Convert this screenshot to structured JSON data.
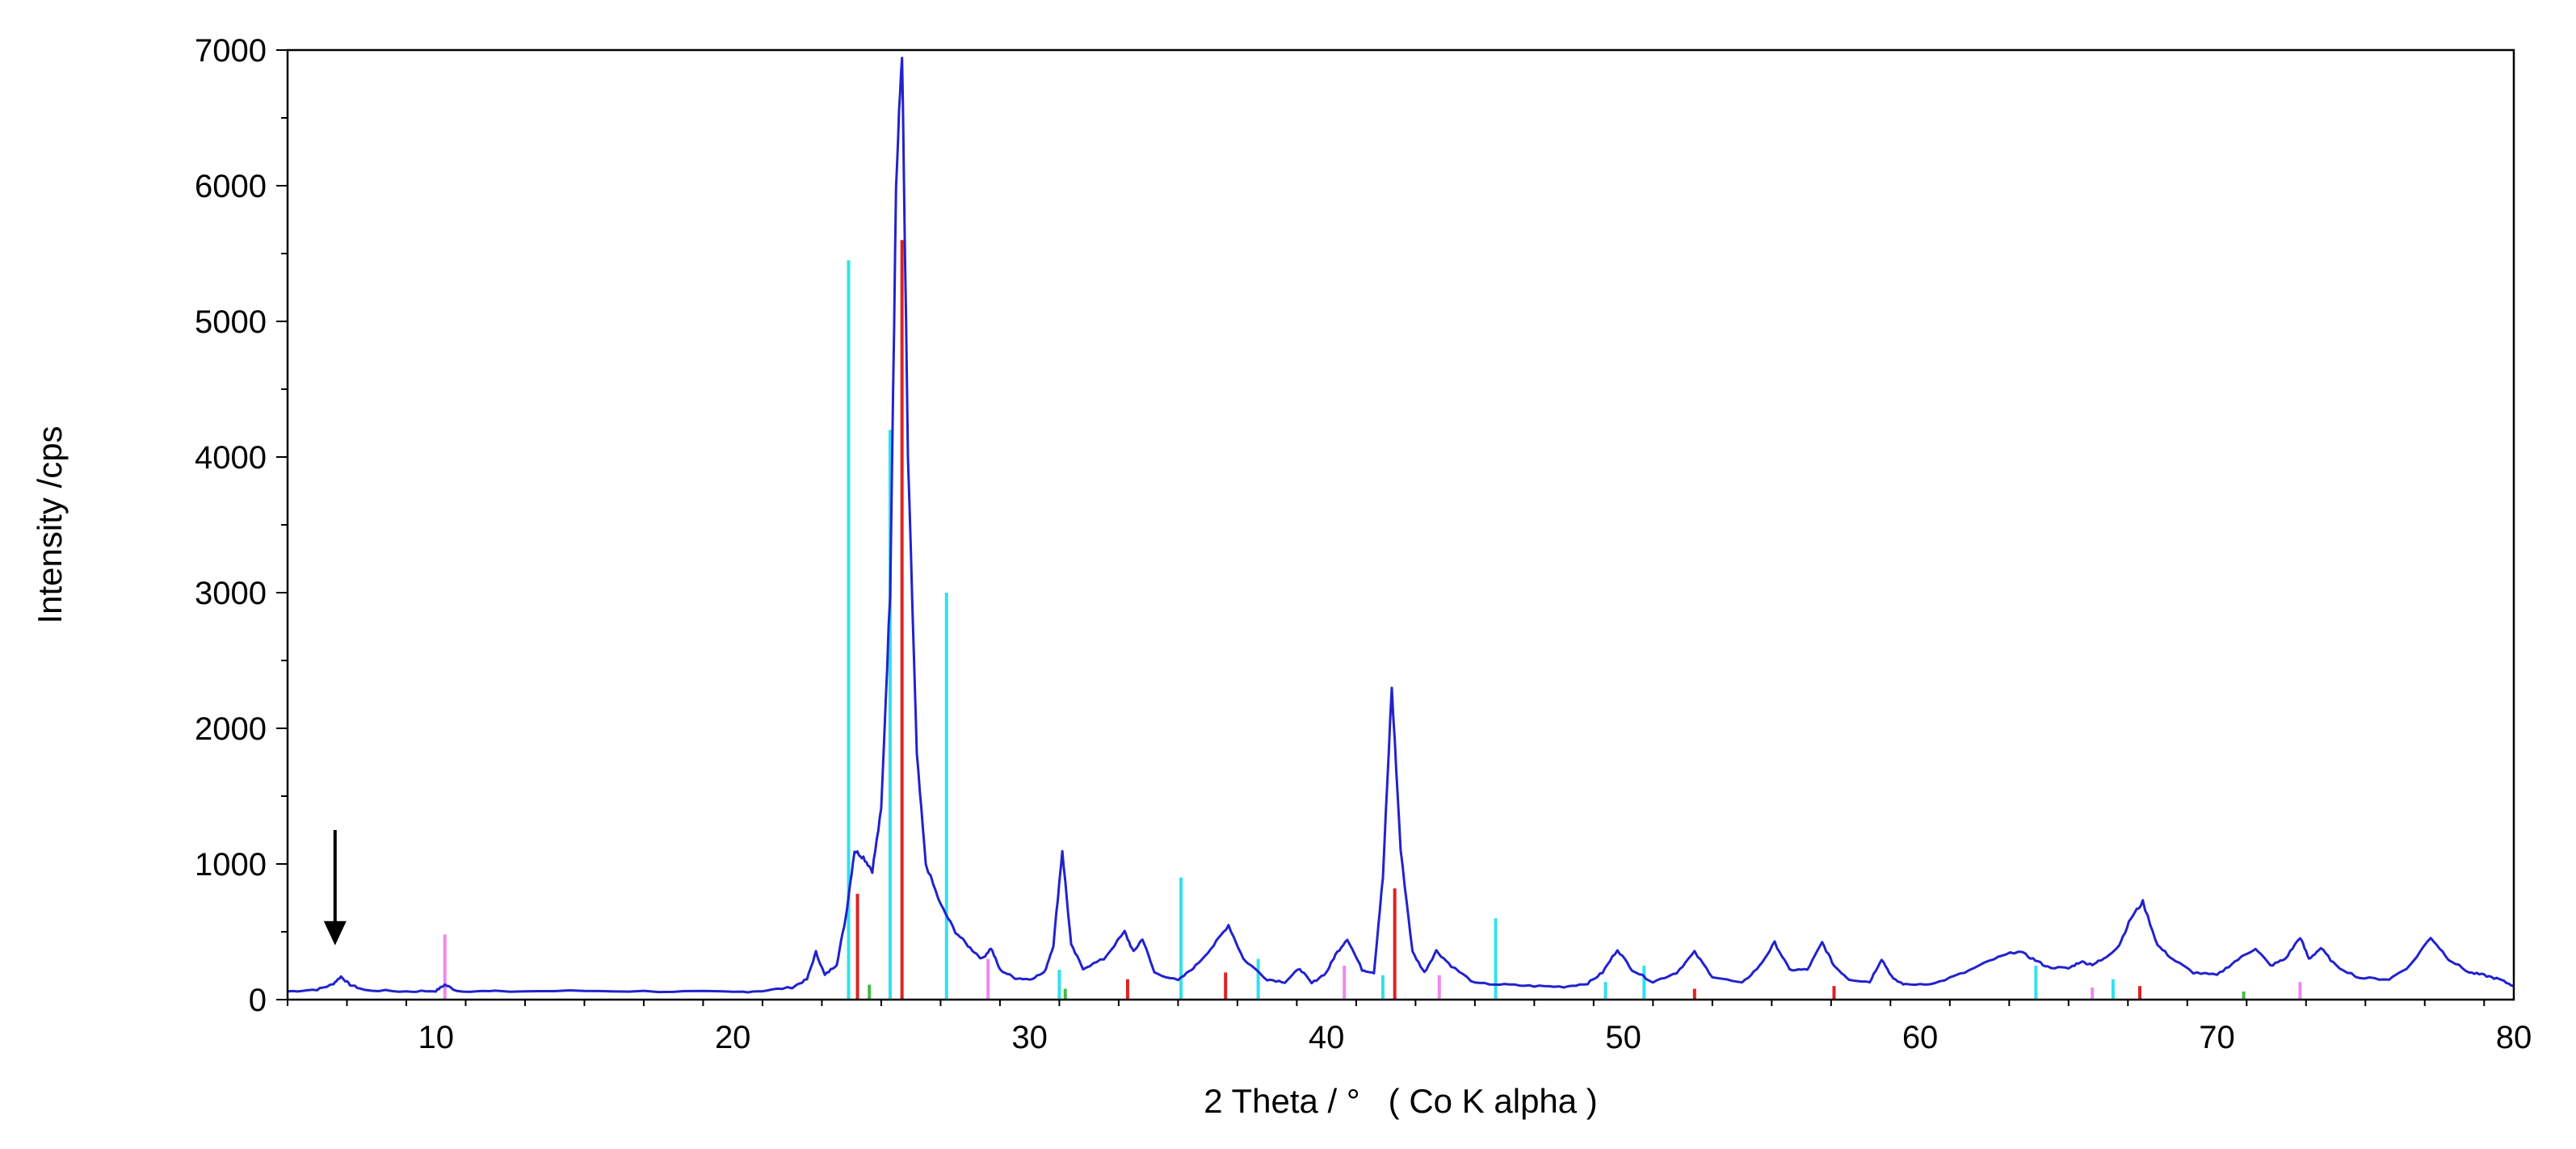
{
  "chart_data": {
    "type": "line",
    "title": "",
    "xlabel": "2 Theta / °   ( Co K alpha )",
    "ylabel": "Intensity /cps",
    "xlim": [
      5,
      80
    ],
    "ylim": [
      0,
      7000
    ],
    "x_ticks": [
      10,
      20,
      30,
      40,
      50,
      60,
      70,
      80
    ],
    "y_ticks": [
      0,
      1000,
      2000,
      3000,
      4000,
      5000,
      6000,
      7000
    ],
    "grid": false,
    "legend": "none",
    "colors": {
      "pattern": "#2222cc",
      "ref_cyan": "#33e0ee",
      "ref_red": "#dd2222",
      "ref_pink": "#ee88ee",
      "ref_green": "#44bb44"
    },
    "series": [
      {
        "kind": "line",
        "color": "#2222cc",
        "x": [
          5,
          6,
          6.5,
          6.8,
          7.1,
          7.6,
          9,
          10,
          10.3,
          10.7,
          12,
          15,
          18,
          20,
          21,
          22,
          22.5,
          22.8,
          23.1,
          23.5,
          23.8,
          24.1,
          24.4,
          24.7,
          25.0,
          25.3,
          25.5,
          25.7,
          25.9,
          26.2,
          26.5,
          27,
          27.5,
          28,
          28.4,
          28.7,
          29,
          29.5,
          30,
          30.5,
          30.8,
          31.1,
          31.4,
          31.8,
          32.5,
          33.2,
          33.5,
          33.8,
          34.2,
          35,
          35.6,
          36.2,
          36.7,
          37.2,
          38,
          38.6,
          39.1,
          39.5,
          40,
          40.3,
          40.7,
          41.2,
          41.6,
          41.9,
          42.2,
          42.5,
          42.9,
          43.3,
          43.7,
          44.2,
          45,
          46,
          47,
          48,
          48.8,
          49.3,
          49.8,
          50.3,
          51,
          51.8,
          52.4,
          53,
          54,
          54.6,
          55.1,
          55.6,
          56.2,
          56.7,
          57.1,
          57.6,
          58.3,
          58.7,
          59.1,
          59.5,
          60.5,
          61.5,
          62.5,
          63.3,
          63.8,
          64.3,
          65,
          65.4,
          65.8,
          66.2,
          66.7,
          67.1,
          67.5,
          68,
          68.5,
          69.2,
          70,
          70.6,
          71.3,
          71.8,
          72.3,
          72.8,
          73.1,
          73.5,
          74,
          74.8,
          75.8,
          76.5,
          77.2,
          77.8,
          78.5,
          79,
          79.5,
          80
        ],
        "y": [
          60,
          75,
          110,
          170,
          110,
          70,
          60,
          65,
          110,
          65,
          60,
          65,
          60,
          55,
          65,
          90,
          150,
          350,
          180,
          260,
          600,
          1100,
          1050,
          950,
          1400,
          3000,
          6000,
          7000,
          4000,
          1800,
          1000,
          700,
          500,
          380,
          300,
          380,
          220,
          160,
          150,
          200,
          400,
          1100,
          400,
          230,
          300,
          500,
          350,
          450,
          200,
          140,
          250,
          400,
          550,
          300,
          150,
          130,
          230,
          120,
          200,
          330,
          450,
          220,
          200,
          900,
          2300,
          1100,
          350,
          200,
          360,
          250,
          120,
          110,
          100,
          95,
          120,
          200,
          370,
          220,
          130,
          200,
          350,
          170,
          120,
          250,
          420,
          220,
          220,
          420,
          250,
          150,
          130,
          300,
          150,
          110,
          120,
          200,
          300,
          360,
          300,
          240,
          230,
          280,
          260,
          300,
          400,
          600,
          720,
          400,
          300,
          200,
          180,
          280,
          380,
          250,
          300,
          460,
          300,
          380,
          250,
          160,
          150,
          250,
          460,
          300,
          200,
          180,
          150,
          100
        ]
      }
    ],
    "reference_lines": [
      {
        "x": 23.9,
        "y": 5450,
        "color": "#33e0ee"
      },
      {
        "x": 25.3,
        "y": 4200,
        "color": "#33e0ee"
      },
      {
        "x": 27.2,
        "y": 3000,
        "color": "#33e0ee"
      },
      {
        "x": 35.1,
        "y": 900,
        "color": "#33e0ee"
      },
      {
        "x": 45.7,
        "y": 600,
        "color": "#33e0ee"
      },
      {
        "x": 37.7,
        "y": 300,
        "color": "#33e0ee"
      },
      {
        "x": 31.0,
        "y": 220,
        "color": "#33e0ee"
      },
      {
        "x": 50.7,
        "y": 250,
        "color": "#33e0ee"
      },
      {
        "x": 63.9,
        "y": 250,
        "color": "#33e0ee"
      },
      {
        "x": 66.5,
        "y": 150,
        "color": "#33e0ee"
      },
      {
        "x": 41.9,
        "y": 180,
        "color": "#33e0ee"
      },
      {
        "x": 49.4,
        "y": 130,
        "color": "#33e0ee"
      },
      {
        "x": 25.7,
        "y": 5600,
        "color": "#dd2222"
      },
      {
        "x": 24.2,
        "y": 780,
        "color": "#dd2222"
      },
      {
        "x": 42.3,
        "y": 820,
        "color": "#dd2222"
      },
      {
        "x": 36.6,
        "y": 200,
        "color": "#dd2222"
      },
      {
        "x": 33.3,
        "y": 150,
        "color": "#dd2222"
      },
      {
        "x": 57.1,
        "y": 100,
        "color": "#dd2222"
      },
      {
        "x": 52.4,
        "y": 80,
        "color": "#dd2222"
      },
      {
        "x": 67.4,
        "y": 100,
        "color": "#dd2222"
      },
      {
        "x": 10.3,
        "y": 480,
        "color": "#ee88ee"
      },
      {
        "x": 28.6,
        "y": 300,
        "color": "#ee88ee"
      },
      {
        "x": 40.6,
        "y": 250,
        "color": "#ee88ee"
      },
      {
        "x": 43.8,
        "y": 180,
        "color": "#ee88ee"
      },
      {
        "x": 72.8,
        "y": 130,
        "color": "#ee88ee"
      },
      {
        "x": 65.8,
        "y": 90,
        "color": "#ee88ee"
      },
      {
        "x": 24.6,
        "y": 110,
        "color": "#44bb44"
      },
      {
        "x": 31.2,
        "y": 80,
        "color": "#44bb44"
      },
      {
        "x": 70.9,
        "y": 60,
        "color": "#44bb44"
      }
    ],
    "annotations": [
      {
        "type": "arrow",
        "direction": "down",
        "x": 6.6,
        "y_from": 1250,
        "y_to": 400,
        "color": "#000000"
      }
    ]
  }
}
